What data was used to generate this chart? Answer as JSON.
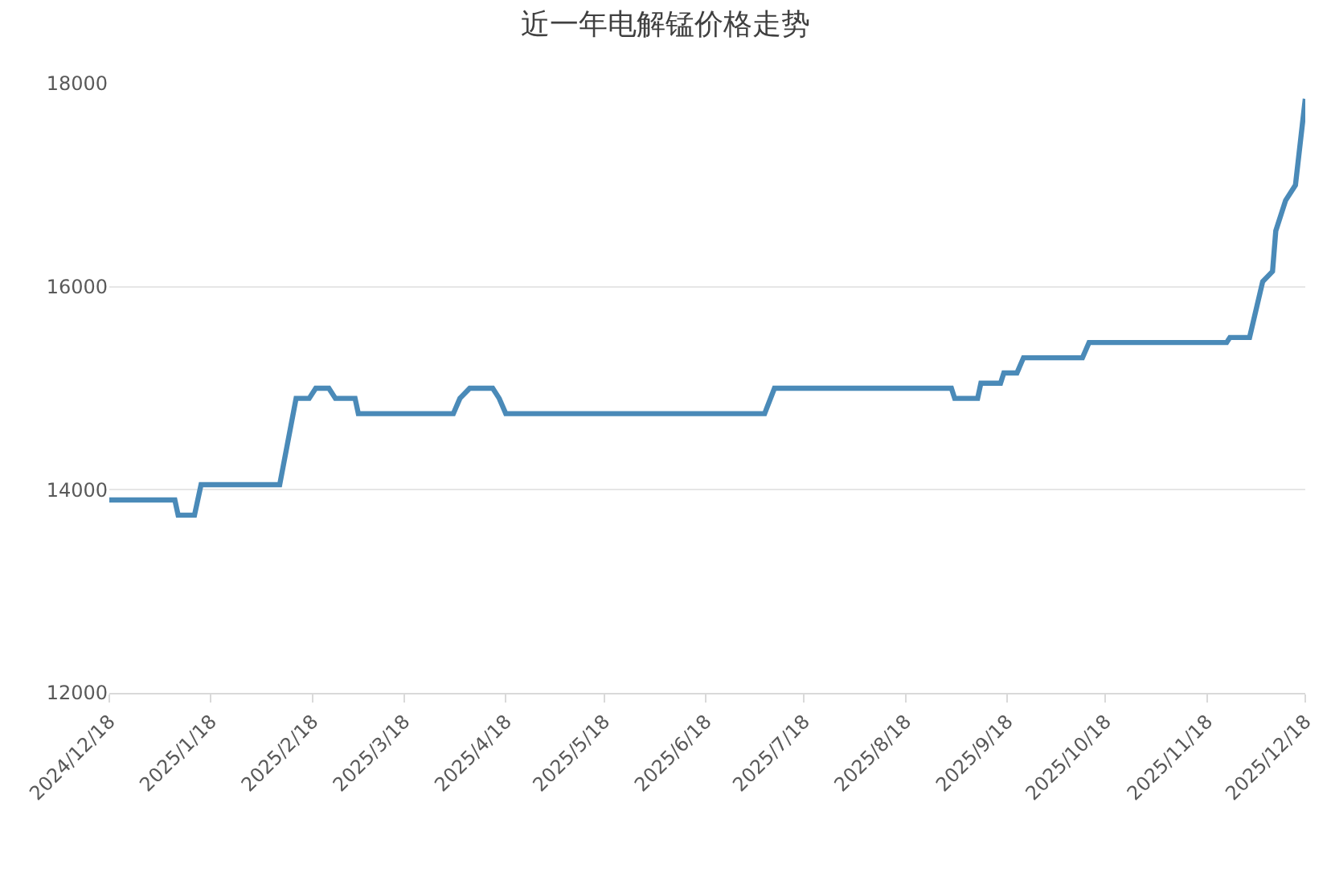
{
  "chart_data": {
    "type": "line",
    "title": "近一年电解锰价格走势",
    "x": [
      "2024-12-18",
      "2025-01-07",
      "2025-01-08",
      "2025-01-13",
      "2025-01-15",
      "2025-02-08",
      "2025-02-13",
      "2025-02-17",
      "2025-02-19",
      "2025-02-23",
      "2025-02-25",
      "2025-03-03",
      "2025-03-04",
      "2025-04-02",
      "2025-04-04",
      "2025-04-07",
      "2025-04-14",
      "2025-04-16",
      "2025-04-18",
      "2025-07-06",
      "2025-07-09",
      "2025-09-01",
      "2025-09-02",
      "2025-09-09",
      "2025-09-10",
      "2025-09-16",
      "2025-09-17",
      "2025-09-21",
      "2025-09-23",
      "2025-10-11",
      "2025-10-13",
      "2025-11-24",
      "2025-11-25",
      "2025-12-01",
      "2025-12-05",
      "2025-12-08",
      "2025-12-09",
      "2025-12-12",
      "2025-12-15",
      "2025-12-18"
    ],
    "series": [
      {
        "color": "#4a8ab8",
        "values": [
          13900,
          13900,
          13750,
          13750,
          14050,
          14050,
          14900,
          14900,
          15000,
          15000,
          14900,
          14900,
          14750,
          14750,
          14900,
          15000,
          15000,
          14900,
          14750,
          14750,
          15000,
          15000,
          14900,
          14900,
          15050,
          15050,
          15150,
          15150,
          15300,
          15300,
          15450,
          15450,
          15500,
          15500,
          16050,
          16150,
          16550,
          16850,
          17000,
          17850
        ]
      }
    ],
    "xlim": [
      "2024-12-18",
      "2025-12-18"
    ],
    "xticks": [
      {
        "value": "2024-12-18",
        "label": "2024/12/18"
      },
      {
        "value": "2025-01-18",
        "label": "2025/1/18"
      },
      {
        "value": "2025-02-18",
        "label": "2025/2/18"
      },
      {
        "value": "2025-03-18",
        "label": "2025/3/18"
      },
      {
        "value": "2025-04-18",
        "label": "2025/4/18"
      },
      {
        "value": "2025-05-18",
        "label": "2025/5/18"
      },
      {
        "value": "2025-06-18",
        "label": "2025/6/18"
      },
      {
        "value": "2025-07-18",
        "label": "2025/7/18"
      },
      {
        "value": "2025-08-18",
        "label": "2025/8/18"
      },
      {
        "value": "2025-09-18",
        "label": "2025/9/18"
      },
      {
        "value": "2025-10-18",
        "label": "2025/10/18"
      },
      {
        "value": "2025-11-18",
        "label": "2025/11/18"
      },
      {
        "value": "2025-12-18",
        "label": "2025/12/18"
      }
    ],
    "ylim": [
      12000,
      18000
    ],
    "yticks": [
      12000,
      14000,
      16000,
      18000
    ],
    "grid": "y",
    "marker": "none",
    "line_style": "solid"
  }
}
